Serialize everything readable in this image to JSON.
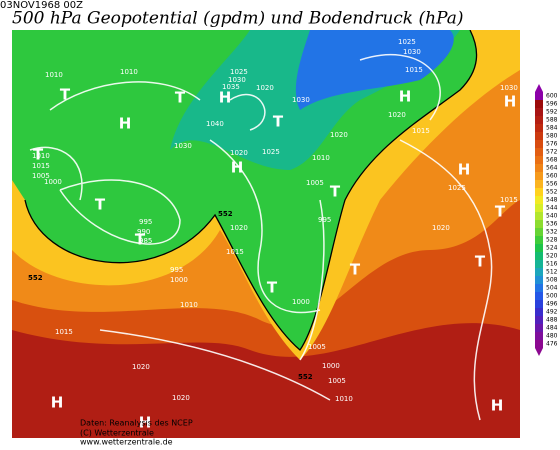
{
  "date": "03NOV1968 00Z",
  "title": "500 hPa Geopotential (gpdm) und Bodendruck (hPa)",
  "colorbar": {
    "levels": [
      600,
      596,
      592,
      588,
      584,
      580,
      576,
      572,
      568,
      564,
      560,
      556,
      552,
      548,
      544,
      540,
      536,
      532,
      528,
      524,
      520,
      516,
      512,
      508,
      504,
      500,
      496,
      492,
      488,
      484,
      480,
      476
    ],
    "colors": [
      "#8b00a8",
      "#9b0a0a",
      "#a81414",
      "#b41e12",
      "#c02a10",
      "#cc3a10",
      "#d84c10",
      "#e25e12",
      "#ea7014",
      "#f08418",
      "#f69a1c",
      "#fbb420",
      "#ffd21e",
      "#f2ea24",
      "#d6ee2a",
      "#b2e62e",
      "#8cdc30",
      "#66d434",
      "#3ecc3a",
      "#1ec44a",
      "#14bc70",
      "#16b496",
      "#1ca6bc",
      "#2090d6",
      "#2274e6",
      "#2458e8",
      "#2a40dc",
      "#3a2ccc",
      "#5220bc",
      "#6a16ac",
      "#7e0e9c",
      "#8c0890"
    ]
  },
  "isobar_labels": [
    "1010",
    "1010",
    "1025",
    "1030",
    "1015",
    "1025",
    "1030",
    "1035",
    "1020",
    "1030",
    "1040",
    "1030",
    "1020",
    "1025",
    "1010",
    "1015",
    "1005",
    "1000",
    "995",
    "990",
    "985",
    "1020",
    "1015",
    "995",
    "1000",
    "1010",
    "1015",
    "1020",
    "1020",
    "1010",
    "1005",
    "1000",
    "1005",
    "1000",
    "995",
    "1005",
    "1010",
    "1015",
    "1020",
    "1020",
    "1025",
    "1020",
    "1015",
    "1030"
  ],
  "pressure_centers": [
    "T",
    "T",
    "H",
    "H",
    "T",
    "H",
    "H",
    "T",
    "T",
    "T",
    "H",
    "T",
    "T",
    "T",
    "H",
    "T",
    "T",
    "H",
    "H",
    "H"
  ],
  "contour_labels": [
    "552",
    "552",
    "552"
  ],
  "footer": [
    "Daten: Reanalysis des NCEP",
    "(C) Wetterzentrale",
    "www.wetterzentrale.de"
  ]
}
